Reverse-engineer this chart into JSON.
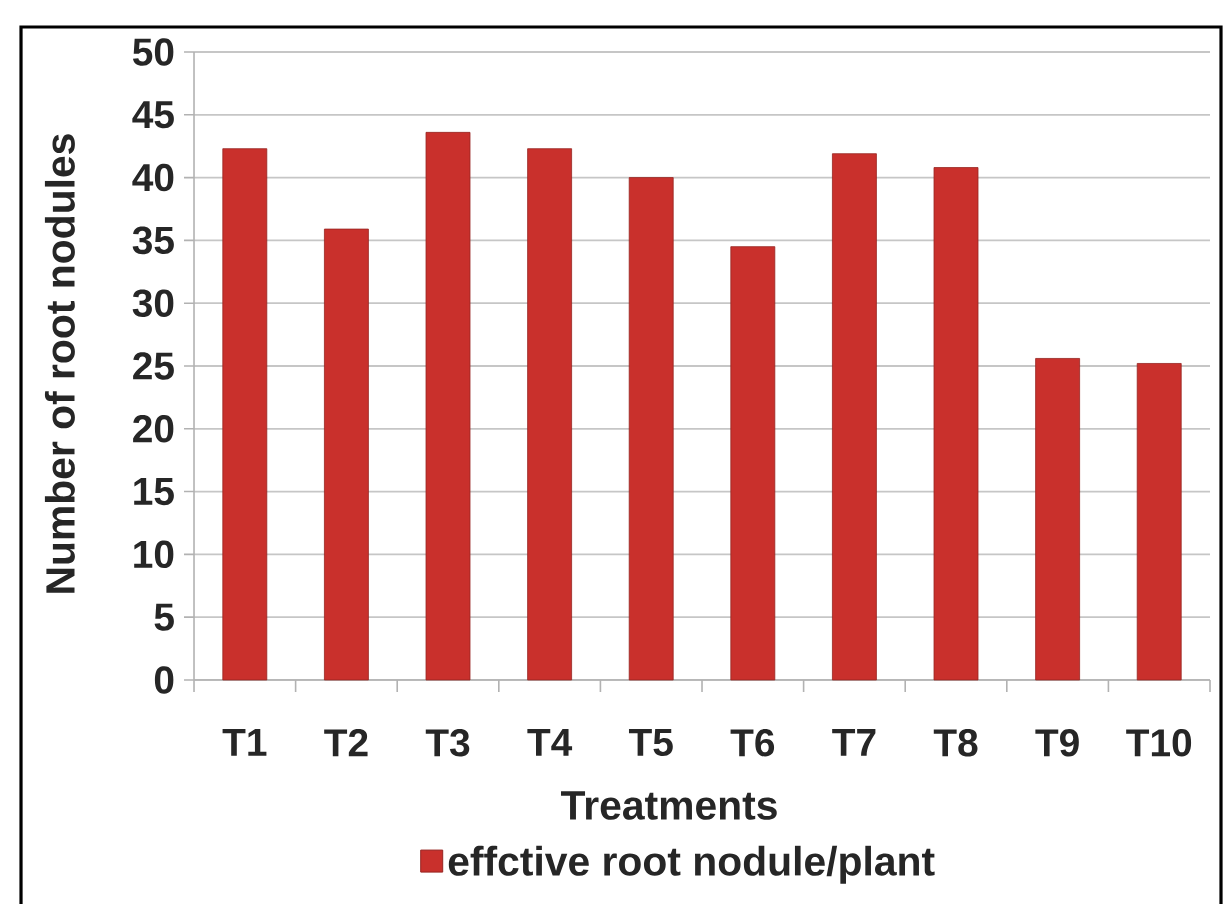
{
  "chart_data": {
    "type": "bar",
    "xlabel": "Treatments",
    "ylabel": "Number of root nodules",
    "categories": [
      "T1",
      "T2",
      "T3",
      "T4",
      "T5",
      "T6",
      "T7",
      "T8",
      "T9",
      "T10"
    ],
    "series": [
      {
        "name": "effctive root nodule/plant",
        "color": "#c9302c",
        "values": [
          42.3,
          35.9,
          43.6,
          42.3,
          40.0,
          34.5,
          41.9,
          40.8,
          25.6,
          25.2
        ]
      }
    ],
    "ylim": [
      0,
      50
    ],
    "yticks": [
      0,
      5,
      10,
      15,
      20,
      25,
      30,
      35,
      40,
      45,
      50
    ],
    "grid": "y",
    "legend": "bottom"
  }
}
